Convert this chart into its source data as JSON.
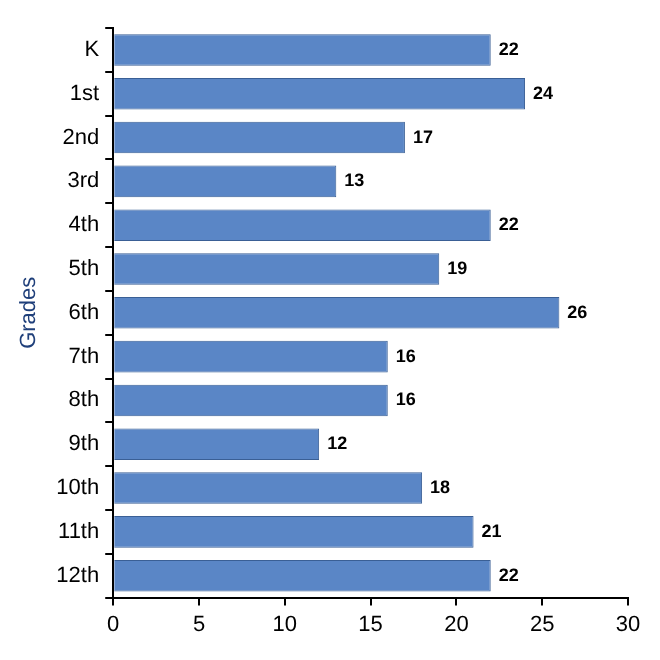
{
  "chart_data": {
    "type": "bar",
    "orientation": "horizontal",
    "ylabel": "Grades",
    "categories": [
      "K",
      "1st",
      "2nd",
      "3rd",
      "4th",
      "5th",
      "6th",
      "7th",
      "8th",
      "9th",
      "10th",
      "11th",
      "12th"
    ],
    "values": [
      22,
      24,
      17,
      13,
      22,
      19,
      26,
      16,
      16,
      12,
      18,
      21,
      22
    ],
    "color": "#5a86c6",
    "xlim": [
      0,
      30
    ],
    "xticks": [
      0,
      5,
      10,
      15,
      20,
      25,
      30
    ],
    "data_labels": true,
    "grid": false,
    "legend": false
  }
}
